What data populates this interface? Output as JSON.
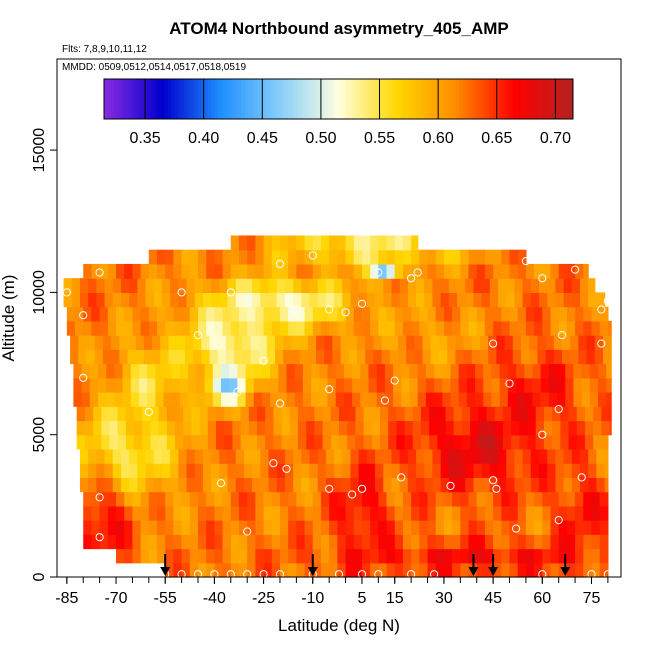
{
  "chart_data": {
    "type": "heatmap",
    "title": "ATOM4 Northbound asymmetry_405_AMP",
    "flights_note": "Flts: 7,8,9,10,11,12",
    "dates_note": "MMDD: 0509,0512,0514,0517,0518,0519",
    "xlabel": "Latitude (deg N)",
    "ylabel": "Altitude (m)",
    "xlim": [
      -88,
      84
    ],
    "ylim": [
      0,
      18200
    ],
    "x_ticks": [
      -85,
      -70,
      -55,
      -40,
      -25,
      -10,
      5,
      15,
      30,
      45,
      60,
      75
    ],
    "x_tick_labels": [
      "-85",
      "-70",
      "-55",
      "-40",
      "-25",
      "-10",
      "5",
      "15",
      "30",
      "45",
      "60",
      "75"
    ],
    "x_minor_step": 5,
    "y_ticks": [
      0,
      5000,
      10000,
      15000
    ],
    "y_tick_labels": [
      "0",
      "5000",
      "10000",
      "15000"
    ],
    "colorbar": {
      "min": 0.315,
      "max": 0.715,
      "ticks": [
        0.35,
        0.4,
        0.45,
        0.5,
        0.55,
        0.6,
        0.65,
        0.7
      ],
      "tick_labels": [
        "0.35",
        "0.40",
        "0.45",
        "0.50",
        "0.55",
        "0.60",
        "0.65",
        "0.70"
      ],
      "colors": [
        "#8a2be2",
        "#0000cd",
        "#1e90ff",
        "#87cefa",
        "#ffffe0",
        "#ffd700",
        "#ff8c00",
        "#ff0000",
        "#b22222"
      ]
    },
    "field": {
      "altitudes": [
        250,
        750,
        1250,
        1750,
        2250,
        2750,
        3250,
        3750,
        4250,
        4750,
        5250,
        5750,
        6250,
        6750,
        7250,
        7750,
        8250,
        8750,
        9250,
        9750,
        10250,
        10750,
        11250,
        11750
      ],
      "row_extents": [
        [
          -55,
          80
        ],
        [
          -70,
          80
        ],
        [
          -80,
          80
        ],
        [
          -80,
          80
        ],
        [
          -80,
          80
        ],
        [
          -80,
          80
        ],
        [
          -81,
          80
        ],
        [
          -81,
          80
        ],
        [
          -81,
          80
        ],
        [
          -82,
          80
        ],
        [
          -82,
          81
        ],
        [
          -82,
          81
        ],
        [
          -83,
          81
        ],
        [
          -83,
          81
        ],
        [
          -83,
          81
        ],
        [
          -84,
          81
        ],
        [
          -84,
          81
        ],
        [
          -85,
          81
        ],
        [
          -85,
          80
        ],
        [
          -86,
          79
        ],
        [
          -86,
          76
        ],
        [
          -80,
          74
        ],
        [
          -60,
          55
        ],
        [
          -35,
          22
        ]
      ],
      "base_value": 0.62,
      "features": [
        {
          "lat": -67,
          "alt": 4500,
          "rx": 16,
          "ry": 1700,
          "value": 0.545
        },
        {
          "lat": -60,
          "alt": 6800,
          "rx": 10,
          "ry": 1500,
          "value": 0.56
        },
        {
          "lat": -36,
          "alt": 6800,
          "rx": 6,
          "ry": 700,
          "value": 0.46
        },
        {
          "lat": -35,
          "alt": 8200,
          "rx": 14,
          "ry": 1300,
          "value": 0.52
        },
        {
          "lat": -20,
          "alt": 9600,
          "rx": 22,
          "ry": 900,
          "value": 0.52
        },
        {
          "lat": 12,
          "alt": 10700,
          "rx": 4,
          "ry": 300,
          "value": 0.42
        },
        {
          "lat": 8,
          "alt": 11600,
          "rx": 28,
          "ry": 600,
          "value": 0.54
        },
        {
          "lat": 40,
          "alt": 4600,
          "rx": 20,
          "ry": 1700,
          "value": 0.68
        },
        {
          "lat": 58,
          "alt": 6500,
          "rx": 14,
          "ry": 1500,
          "value": 0.66
        },
        {
          "lat": 5,
          "alt": 2200,
          "rx": 8,
          "ry": 1600,
          "value": 0.67
        },
        {
          "lat": -75,
          "alt": 1900,
          "rx": 9,
          "ry": 1400,
          "value": 0.67
        },
        {
          "lat": 40,
          "alt": 700,
          "rx": 45,
          "ry": 600,
          "value": 0.665
        },
        {
          "lat": 72,
          "alt": 2300,
          "rx": 8,
          "ry": 1600,
          "value": 0.66
        },
        {
          "lat": 25,
          "alt": 8600,
          "rx": 14,
          "ry": 1100,
          "value": 0.6
        }
      ]
    },
    "sample_points": [
      [
        -55,
        100
      ],
      [
        -50,
        100
      ],
      [
        -45,
        100
      ],
      [
        -40,
        100
      ],
      [
        -35,
        100
      ],
      [
        -30,
        100
      ],
      [
        -25,
        100
      ],
      [
        -20,
        100
      ],
      [
        -10,
        100
      ],
      [
        -2,
        100
      ],
      [
        5,
        100
      ],
      [
        10,
        100
      ],
      [
        20,
        100
      ],
      [
        27,
        100
      ],
      [
        60,
        100
      ],
      [
        75,
        100
      ],
      [
        80,
        100
      ],
      [
        -75,
        1400
      ],
      [
        -30,
        1600
      ],
      [
        -75,
        2800
      ],
      [
        -38,
        3300
      ],
      [
        -22,
        4000
      ],
      [
        -18,
        3800
      ],
      [
        -5,
        3100
      ],
      [
        2,
        2900
      ],
      [
        5,
        3100
      ],
      [
        17,
        3500
      ],
      [
        32,
        3200
      ],
      [
        45,
        3400
      ],
      [
        46,
        3100
      ],
      [
        65,
        2000
      ],
      [
        72,
        3500
      ],
      [
        52,
        1700
      ],
      [
        -60,
        5800
      ],
      [
        -33,
        6500
      ],
      [
        -20,
        6100
      ],
      [
        -5,
        6600
      ],
      [
        12,
        6200
      ],
      [
        15,
        6900
      ],
      [
        50,
        6800
      ],
      [
        65,
        5900
      ],
      [
        60,
        5000
      ],
      [
        84,
        6300
      ],
      [
        -80,
        7000
      ],
      [
        -45,
        8500
      ],
      [
        -25,
        7600
      ],
      [
        -50,
        10000
      ],
      [
        -35,
        10000
      ],
      [
        -15,
        9400
      ],
      [
        -5,
        9400
      ],
      [
        0,
        9300
      ],
      [
        5,
        9600
      ],
      [
        -10,
        11300
      ],
      [
        -20,
        11000
      ],
      [
        10,
        10700
      ],
      [
        20,
        10500
      ],
      [
        22,
        10700
      ],
      [
        55,
        11100
      ],
      [
        -85,
        10000
      ],
      [
        -80,
        9200
      ],
      [
        -75,
        10700
      ],
      [
        60,
        10500
      ],
      [
        70,
        10800
      ],
      [
        77,
        10800
      ],
      [
        66,
        8500
      ],
      [
        78,
        9400
      ],
      [
        80,
        9700
      ],
      [
        78,
        8200
      ],
      [
        45,
        8200
      ]
    ],
    "arrow_latitudes": [
      -55,
      -10,
      39,
      45,
      67
    ]
  }
}
